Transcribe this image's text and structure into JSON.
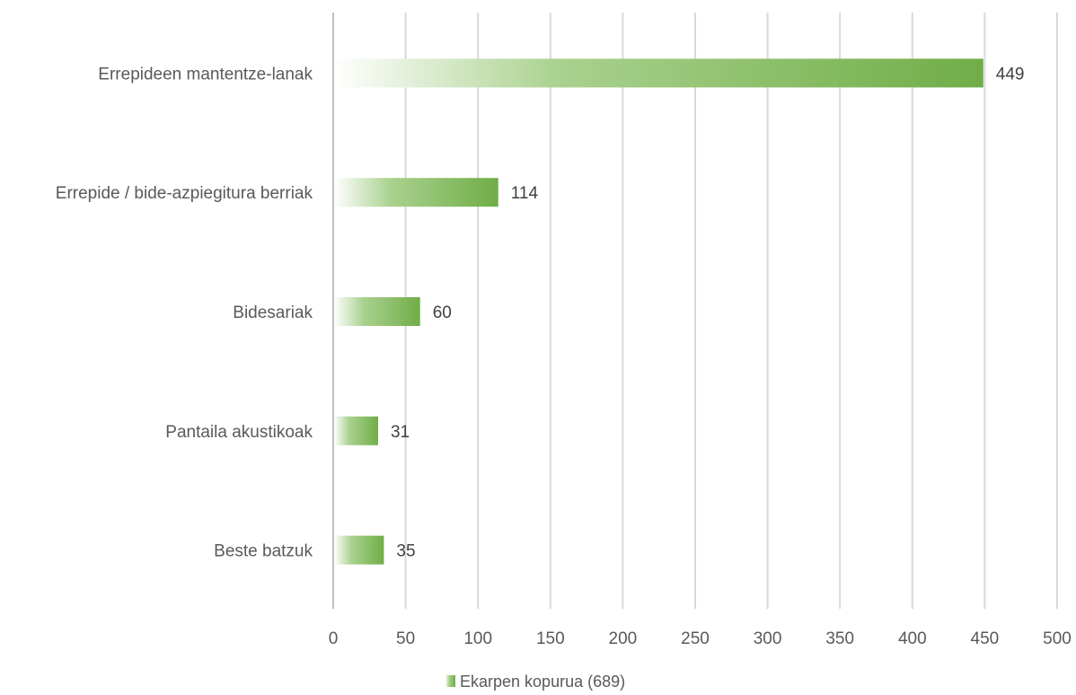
{
  "chart_data": {
    "type": "bar",
    "orientation": "horizontal",
    "categories": [
      "Errepideen mantentze-lanak",
      "Errepide / bide-azpiegitura berriak",
      "Bidesariak",
      "Pantaila akustikoak",
      "Beste batzuk"
    ],
    "series": [
      {
        "name": "Ekarpen kopurua (689)",
        "values": [
          449,
          114,
          60,
          31,
          35
        ]
      }
    ],
    "x_ticks": [
      "0",
      "50",
      "100",
      "150",
      "200",
      "250",
      "300",
      "350",
      "400",
      "450",
      "500"
    ],
    "xlim": [
      0,
      500
    ],
    "grid": true,
    "legend_position": "bottom",
    "data_labels": true,
    "colors": {
      "bar": "#70ad47",
      "bar_fade": "#ffffff",
      "grid": "#d9d9d9",
      "text": "#595959"
    }
  }
}
